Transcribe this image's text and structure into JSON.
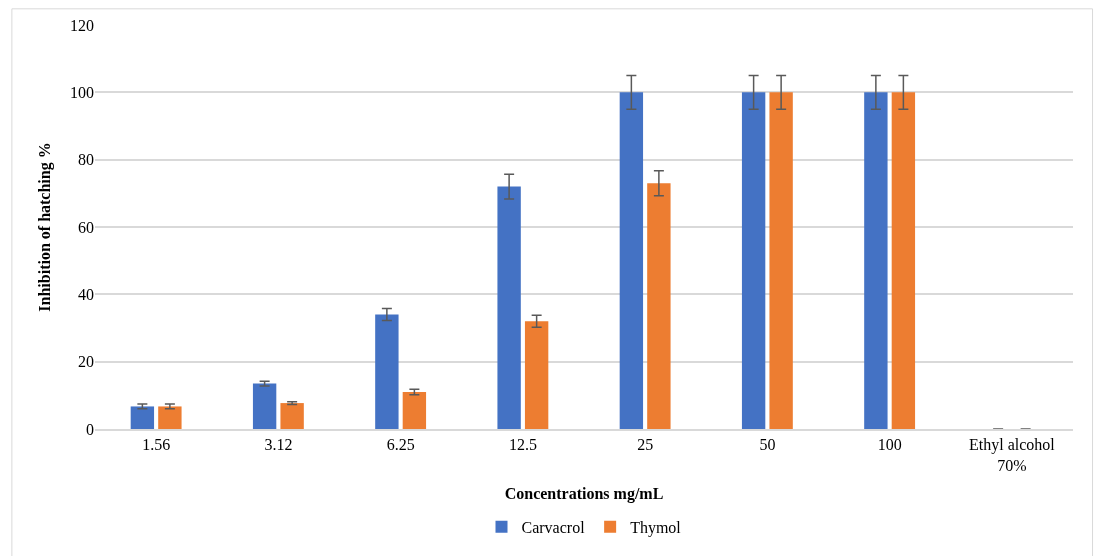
{
  "chart_data": {
    "type": "bar",
    "xlabel": "Concentrations mg/mL",
    "ylabel": "Inhibition of hatching %",
    "categories": [
      "1.56",
      "3.12",
      "6.25",
      "12.5",
      "25",
      "50",
      "100",
      "Ethyl alcohol\n70%"
    ],
    "series": [
      {
        "name": "Carvacrol",
        "color": "#4472c4",
        "values": [
          6.7,
          13.5,
          34,
          72,
          100,
          100,
          100,
          0
        ],
        "errors": [
          0.7,
          0.7,
          1.8,
          3.7,
          5,
          5,
          5,
          null
        ]
      },
      {
        "name": "Thymol",
        "color": "#ed7d31",
        "values": [
          6.7,
          7.7,
          11,
          32,
          73,
          100,
          100,
          0
        ],
        "errors": [
          0.7,
          0.4,
          0.8,
          1.8,
          3.7,
          5,
          5,
          null
        ]
      }
    ],
    "ylim": [
      0,
      120
    ],
    "yticks": [
      0,
      20,
      40,
      60,
      80,
      100,
      120
    ],
    "grid": "y",
    "legend": "bottom"
  }
}
